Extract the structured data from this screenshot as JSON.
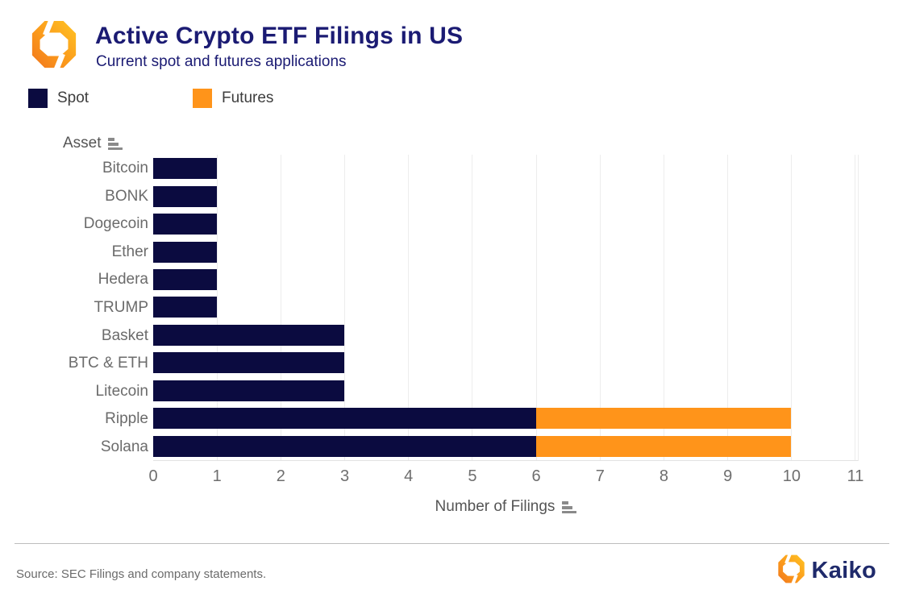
{
  "header": {
    "title": "Active Crypto ETF Filings in US",
    "subtitle": "Current spot and futures applications"
  },
  "legend": [
    {
      "label": "Spot",
      "color": "#0b0b40"
    },
    {
      "label": "Futures",
      "color": "#ff941a"
    }
  ],
  "chart_data": {
    "type": "bar",
    "orientation": "horizontal",
    "stacked": true,
    "title": "Active Crypto ETF Filings in US",
    "subtitle": "Current spot and futures applications",
    "ylabel": "Asset",
    "xlabel": "Number of Filings",
    "categories": [
      "Bitcoin",
      "BONK",
      "Dogecoin",
      "Ether",
      "Hedera",
      "TRUMP",
      "Basket",
      "BTC & ETH",
      "Litecoin",
      "Ripple",
      "Solana"
    ],
    "series": [
      {
        "name": "Spot",
        "color": "#0b0b40",
        "values": [
          1,
          1,
          1,
          1,
          1,
          1,
          3,
          3,
          3,
          6,
          6
        ]
      },
      {
        "name": "Futures",
        "color": "#ff941a",
        "values": [
          0,
          0,
          0,
          0,
          0,
          0,
          0,
          0,
          0,
          4,
          4
        ]
      }
    ],
    "x_ticks": [
      0,
      1,
      2,
      3,
      4,
      5,
      6,
      7,
      8,
      9,
      10,
      11
    ],
    "xlim": [
      0,
      11.05
    ],
    "grid": "vertical",
    "legend_position": "top-left"
  },
  "footer": {
    "source": "Source: SEC Filings and company statements.",
    "brand": "Kaiko"
  }
}
